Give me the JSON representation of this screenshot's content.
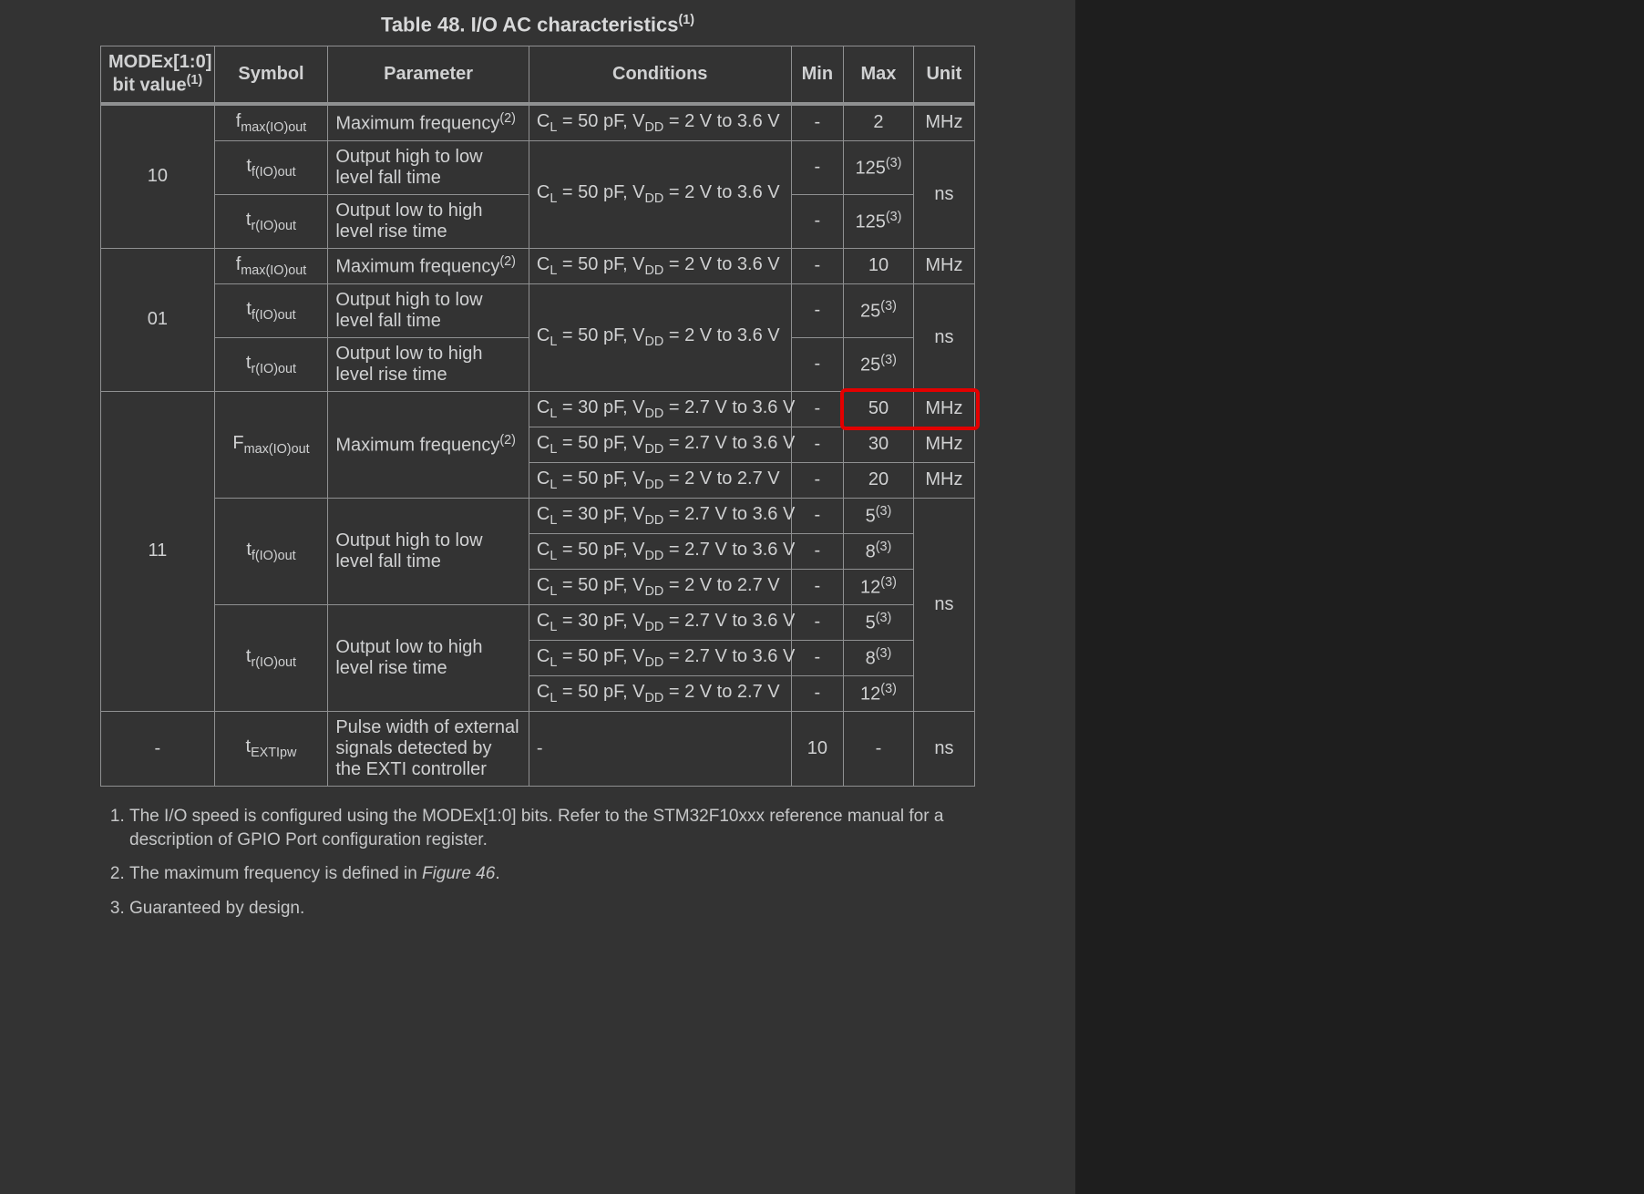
{
  "title_prefix": "Table 48. I/O AC characteristics",
  "title_supref": "(1)",
  "headers": {
    "mode_line1": "MODEx[1:0]",
    "mode_line2_prefix": "bit value",
    "mode_line2_sup": "(1)",
    "symbol": "Symbol",
    "parameter": "Parameter",
    "conditions": "Conditions",
    "min": "Min",
    "max": "Max",
    "unit": "Unit"
  },
  "labels": {
    "maxfreq_prefix": "Maximum frequency",
    "maxfreq_sup": "(2)",
    "fall": "Output high to low level fall time",
    "rise": "Output low to high level rise time",
    "exti": "Pulse width of external signals detected by the EXTI controller"
  },
  "symbols": {
    "fmax_pre": "f",
    "fmax_sub": "max(IO)out",
    "Fmax_pre": "F",
    "Fmax_sub": "max(IO)out",
    "tf_pre": "t",
    "tf_sub": "f(IO)out",
    "tr_pre": "t",
    "tr_sub": "r(IO)out",
    "texti_pre": "t",
    "texti_sub": "EXTIpw"
  },
  "cond": {
    "c50_2_36_a": "C",
    "c50_2_36_b": " = 50 pF, V",
    "c50_2_36_c": " = 2 V to 3.6 V",
    "c30_27_36_a": "C",
    "c30_27_36_b": " = 30 pF, V",
    "c30_27_36_c": " = 2.7 V to 3.6 V",
    "c50_27_36_a": "C",
    "c50_27_36_b": " = 50 pF, V",
    "c50_27_36_c": " = 2.7 V to 3.6 V",
    "c50_2_27_a": "C",
    "c50_2_27_b": " = 50 pF, V",
    "c50_2_27_c": " = 2 V to 2.7 V",
    "subL": "L",
    "subDD": "DD",
    "dash": "-"
  },
  "mode": {
    "m10": "10",
    "m01": "01",
    "m11": "11",
    "mdash": "-"
  },
  "vals": {
    "dash": "-",
    "v2": "2",
    "v10": "10",
    "v50": "50",
    "v30": "30",
    "v20": "20",
    "v125": "125",
    "v25": "25",
    "v5": "5",
    "v8": "8",
    "v12": "12",
    "sup3": "(3)",
    "min10": "10"
  },
  "units": {
    "mhz": "MHz",
    "ns": "ns"
  },
  "footnotes": {
    "f1": "The I/O speed is configured using the MODEx[1:0] bits. Refer to the STM32F10xxx reference manual for a description of GPIO Port configuration register.",
    "f2_pre": "The maximum frequency is defined in ",
    "f2_em": "Figure 46",
    "f2_post": ".",
    "f3": "Guaranteed by design."
  },
  "colors": {
    "page_bg": "#333333",
    "outer_bg": "#1e1e1e",
    "text": "#d0d1d2",
    "border": "#8f9091",
    "highlight": "#e30000"
  }
}
